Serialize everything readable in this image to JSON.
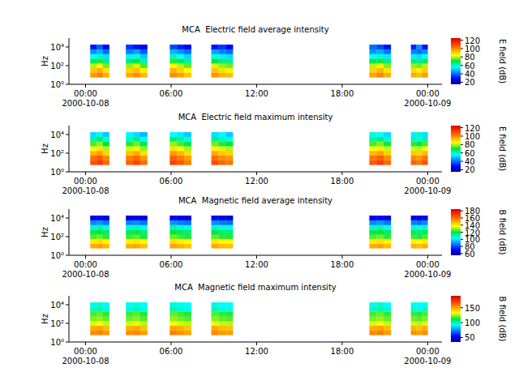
{
  "chart_data": [
    {
      "type": "heatmap",
      "title": "MCA  Electric field average intensity",
      "ylabel": "Hz",
      "log": "y",
      "x_start": [
        "2000-10-08 00:20",
        "2000-10-08 00:47",
        "2000-10-08 01:13",
        "2000-10-08 02:50",
        "2000-10-08 03:20",
        "2000-10-08 03:50",
        "2000-10-08 05:55",
        "2000-10-08 06:25",
        "2000-10-08 06:55",
        "2000-10-08 08:50",
        "2000-10-08 09:20",
        "2000-10-08 09:50",
        "2000-10-08 19:55",
        "2000-10-08 20:25",
        "2000-10-08 20:55",
        "2000-10-08 22:50",
        "2000-10-08 23:13",
        "2000-10-08 23:37"
      ],
      "x_end": [
        "2000-10-08 00:47",
        "2000-10-08 01:13",
        "2000-10-08 01:40",
        "2000-10-08 03:20",
        "2000-10-08 03:50",
        "2000-10-08 04:20",
        "2000-10-08 06:25",
        "2000-10-08 06:55",
        "2000-10-08 07:25",
        "2000-10-08 09:20",
        "2000-10-08 09:50",
        "2000-10-08 10:20",
        "2000-10-08 20:25",
        "2000-10-08 20:55",
        "2000-10-08 21:25",
        "2000-10-08 23:13",
        "2000-10-08 23:37",
        "2000-10-09 00:00"
      ],
      "y_edges": [
        5.6,
        17.8,
        56.2,
        178,
        562,
        1780,
        5620,
        17800
      ],
      "cells": [
        [
          98,
          102,
          95,
          96,
          100,
          94,
          100,
          97,
          92,
          99,
          95,
          93,
          97,
          101,
          95,
          96,
          93,
          98
        ],
        [
          92,
          95,
          88,
          90,
          93,
          86,
          94,
          90,
          85,
          92,
          88,
          86,
          90,
          94,
          88,
          89,
          86,
          91
        ],
        [
          80,
          84,
          76,
          78,
          82,
          74,
          84,
          80,
          75,
          82,
          78,
          76,
          80,
          83,
          77,
          78,
          76,
          80
        ],
        [
          68,
          72,
          64,
          66,
          70,
          62,
          72,
          68,
          63,
          70,
          66,
          64,
          68,
          71,
          65,
          66,
          64,
          68
        ],
        [
          56,
          60,
          52,
          54,
          58,
          50,
          60,
          56,
          51,
          58,
          54,
          52,
          56,
          59,
          53,
          54,
          52,
          56
        ],
        [
          44,
          48,
          40,
          42,
          46,
          38,
          48,
          44,
          40,
          46,
          42,
          40,
          44,
          47,
          41,
          42,
          40,
          44
        ],
        [
          30,
          38,
          28,
          34,
          30,
          26,
          36,
          32,
          28,
          30,
          34,
          28,
          40,
          36,
          30,
          32,
          44,
          30
        ]
      ],
      "xlim": [
        "2000-10-07 22:50",
        "2000-10-09 01:00"
      ],
      "xticks": [
        {
          "value": "2000-10-08 00:00",
          "label": "00:00\n2000-10-08"
        },
        {
          "value": "2000-10-08 06:00",
          "label": "06:00"
        },
        {
          "value": "2000-10-08 12:00",
          "label": "12:00"
        },
        {
          "value": "2000-10-08 18:00",
          "label": "18:00"
        },
        {
          "value": "2000-10-09 00:00",
          "label": "00:00\n2000-10-09"
        }
      ],
      "ylim": [
        1,
        90000
      ],
      "yticks": [
        {
          "value": 1,
          "label": "10⁰"
        },
        {
          "value": 100,
          "label": "10²"
        },
        {
          "value": 10000,
          "label": "10⁴"
        }
      ],
      "colorbar": {
        "label": "E field (dB)",
        "range": [
          15,
          125
        ],
        "ticks": [
          20,
          40,
          60,
          80,
          100,
          120
        ]
      }
    },
    {
      "type": "heatmap",
      "title": "MCA  Electric field maximum intensity",
      "ylabel": "Hz",
      "log": "y",
      "x_start": [
        "2000-10-08 00:20",
        "2000-10-08 00:47",
        "2000-10-08 01:13",
        "2000-10-08 02:50",
        "2000-10-08 03:20",
        "2000-10-08 03:50",
        "2000-10-08 05:55",
        "2000-10-08 06:25",
        "2000-10-08 06:55",
        "2000-10-08 08:50",
        "2000-10-08 09:20",
        "2000-10-08 09:50",
        "2000-10-08 19:55",
        "2000-10-08 20:25",
        "2000-10-08 20:55",
        "2000-10-08 22:50",
        "2000-10-08 23:13",
        "2000-10-08 23:37"
      ],
      "x_end": [
        "2000-10-08 00:47",
        "2000-10-08 01:13",
        "2000-10-08 01:40",
        "2000-10-08 03:20",
        "2000-10-08 03:50",
        "2000-10-08 04:20",
        "2000-10-08 06:25",
        "2000-10-08 06:55",
        "2000-10-08 07:25",
        "2000-10-08 09:20",
        "2000-10-08 09:50",
        "2000-10-08 10:20",
        "2000-10-08 20:25",
        "2000-10-08 20:55",
        "2000-10-08 21:25",
        "2000-10-08 23:13",
        "2000-10-08 23:37",
        "2000-10-09 00:00"
      ],
      "y_edges": [
        5.6,
        17.8,
        56.2,
        178,
        562,
        1780,
        5620,
        17800
      ],
      "cells": [
        [
          108,
          112,
          105,
          106,
          110,
          104,
          110,
          107,
          102,
          109,
          105,
          103,
          107,
          111,
          105,
          106,
          103,
          108
        ],
        [
          104,
          107,
          100,
          102,
          105,
          98,
          106,
          102,
          97,
          104,
          100,
          98,
          102,
          106,
          100,
          101,
          98,
          103
        ],
        [
          94,
          98,
          90,
          92,
          96,
          88,
          98,
          94,
          89,
          96,
          92,
          90,
          94,
          97,
          91,
          92,
          90,
          94
        ],
        [
          84,
          88,
          80,
          82,
          86,
          78,
          88,
          84,
          79,
          86,
          82,
          80,
          84,
          87,
          81,
          82,
          80,
          84
        ],
        [
          74,
          78,
          70,
          72,
          76,
          68,
          78,
          74,
          69,
          76,
          72,
          70,
          74,
          77,
          71,
          72,
          70,
          74
        ],
        [
          62,
          66,
          58,
          60,
          64,
          56,
          66,
          62,
          58,
          64,
          60,
          58,
          62,
          65,
          59,
          60,
          58,
          62
        ],
        [
          52,
          58,
          50,
          55,
          52,
          48,
          56,
          54,
          50,
          52,
          55,
          50,
          58,
          56,
          52,
          54,
          60,
          52
        ]
      ],
      "xlim": [
        "2000-10-07 22:50",
        "2000-10-09 01:00"
      ],
      "xticks": [
        {
          "value": "2000-10-08 00:00",
          "label": "00:00\n2000-10-08"
        },
        {
          "value": "2000-10-08 06:00",
          "label": "06:00"
        },
        {
          "value": "2000-10-08 12:00",
          "label": "12:00"
        },
        {
          "value": "2000-10-08 18:00",
          "label": "18:00"
        },
        {
          "value": "2000-10-09 00:00",
          "label": "00:00\n2000-10-09"
        }
      ],
      "ylim": [
        1,
        90000
      ],
      "yticks": [
        {
          "value": 1,
          "label": "10⁰"
        },
        {
          "value": 100,
          "label": "10²"
        },
        {
          "value": 10000,
          "label": "10⁴"
        }
      ],
      "colorbar": {
        "label": "E field (dB)",
        "range": [
          15,
          125
        ],
        "ticks": [
          20,
          40,
          60,
          80,
          100,
          120
        ]
      }
    },
    {
      "type": "heatmap",
      "title": "MCA  Magnetic field average intensity",
      "ylabel": "Hz",
      "log": "y",
      "x_start": [
        "2000-10-08 00:20",
        "2000-10-08 00:47",
        "2000-10-08 01:13",
        "2000-10-08 02:50",
        "2000-10-08 03:20",
        "2000-10-08 03:50",
        "2000-10-08 05:55",
        "2000-10-08 06:25",
        "2000-10-08 06:55",
        "2000-10-08 08:50",
        "2000-10-08 09:20",
        "2000-10-08 09:50",
        "2000-10-08 19:55",
        "2000-10-08 20:25",
        "2000-10-08 20:55",
        "2000-10-08 22:50",
        "2000-10-08 23:13",
        "2000-10-08 23:37"
      ],
      "x_end": [
        "2000-10-08 00:47",
        "2000-10-08 01:13",
        "2000-10-08 01:40",
        "2000-10-08 03:20",
        "2000-10-08 03:50",
        "2000-10-08 04:20",
        "2000-10-08 06:25",
        "2000-10-08 06:55",
        "2000-10-08 07:25",
        "2000-10-08 09:20",
        "2000-10-08 09:50",
        "2000-10-08 10:20",
        "2000-10-08 20:25",
        "2000-10-08 20:55",
        "2000-10-08 21:25",
        "2000-10-08 23:13",
        "2000-10-08 23:37",
        "2000-10-09 00:00"
      ],
      "y_edges": [
        5.6,
        17.8,
        56.2,
        178,
        562,
        1780,
        5620,
        17800
      ],
      "cells": [
        [
          150,
          152,
          148,
          150,
          151,
          147,
          152,
          149,
          146,
          151,
          148,
          147,
          150,
          152,
          148,
          149,
          147,
          150
        ],
        [
          140,
          142,
          138,
          139,
          141,
          137,
          142,
          139,
          137,
          141,
          138,
          137,
          140,
          142,
          138,
          139,
          137,
          140
        ],
        [
          125,
          127,
          123,
          124,
          126,
          122,
          127,
          124,
          122,
          126,
          123,
          122,
          125,
          127,
          123,
          124,
          122,
          125
        ],
        [
          118,
          120,
          116,
          117,
          119,
          115,
          120,
          117,
          115,
          119,
          116,
          115,
          118,
          120,
          116,
          117,
          115,
          118
        ],
        [
          108,
          110,
          106,
          107,
          109,
          105,
          110,
          107,
          105,
          109,
          106,
          105,
          108,
          110,
          106,
          107,
          105,
          108
        ],
        [
          88,
          90,
          86,
          87,
          89,
          85,
          90,
          87,
          85,
          89,
          86,
          85,
          88,
          90,
          86,
          87,
          85,
          88
        ],
        [
          68,
          70,
          66,
          67,
          69,
          65,
          70,
          67,
          65,
          69,
          66,
          65,
          68,
          70,
          66,
          67,
          65,
          68
        ]
      ],
      "xlim": [
        "2000-10-07 22:50",
        "2000-10-09 01:00"
      ],
      "xticks": [
        {
          "value": "2000-10-08 00:00",
          "label": "00:00\n2000-10-08"
        },
        {
          "value": "2000-10-08 06:00",
          "label": "06:00"
        },
        {
          "value": "2000-10-08 12:00",
          "label": "12:00"
        },
        {
          "value": "2000-10-08 18:00",
          "label": "18:00"
        },
        {
          "value": "2000-10-09 00:00",
          "label": "00:00\n2000-10-09"
        }
      ],
      "ylim": [
        1,
        90000
      ],
      "yticks": [
        {
          "value": 1,
          "label": "10⁰"
        },
        {
          "value": 100,
          "label": "10²"
        },
        {
          "value": 10000,
          "label": "10⁴"
        }
      ],
      "colorbar": {
        "label": "B field (dB)",
        "range": [
          55,
          185
        ],
        "ticks": [
          60,
          80,
          100,
          120,
          140,
          160,
          180
        ]
      }
    },
    {
      "type": "heatmap",
      "title": "MCA  Magnetic field maximum intensity",
      "ylabel": "Hz",
      "log": "y",
      "x_start": [
        "2000-10-08 00:20",
        "2000-10-08 00:47",
        "2000-10-08 01:13",
        "2000-10-08 02:50",
        "2000-10-08 03:20",
        "2000-10-08 03:50",
        "2000-10-08 05:55",
        "2000-10-08 06:25",
        "2000-10-08 06:55",
        "2000-10-08 08:50",
        "2000-10-08 09:20",
        "2000-10-08 09:50",
        "2000-10-08 19:55",
        "2000-10-08 20:25",
        "2000-10-08 20:55",
        "2000-10-08 22:50",
        "2000-10-08 23:13",
        "2000-10-08 23:37"
      ],
      "x_end": [
        "2000-10-08 00:47",
        "2000-10-08 01:13",
        "2000-10-08 01:40",
        "2000-10-08 03:20",
        "2000-10-08 03:50",
        "2000-10-08 04:20",
        "2000-10-08 06:25",
        "2000-10-08 06:55",
        "2000-10-08 07:25",
        "2000-10-08 09:20",
        "2000-10-08 09:50",
        "2000-10-08 10:20",
        "2000-10-08 20:25",
        "2000-10-08 20:55",
        "2000-10-08 21:25",
        "2000-10-08 23:13",
        "2000-10-08 23:37",
        "2000-10-09 00:00"
      ],
      "y_edges": [
        5.6,
        17.8,
        56.2,
        178,
        562,
        1780,
        5620,
        17800
      ],
      "cells": [
        [
          155,
          157,
          152,
          154,
          156,
          151,
          157,
          154,
          150,
          156,
          152,
          151,
          155,
          157,
          152,
          154,
          151,
          155
        ],
        [
          148,
          150,
          145,
          147,
          149,
          144,
          150,
          147,
          143,
          149,
          145,
          144,
          148,
          150,
          145,
          147,
          144,
          148
        ],
        [
          130,
          132,
          128,
          129,
          131,
          127,
          132,
          129,
          127,
          131,
          128,
          127,
          130,
          132,
          128,
          129,
          127,
          130
        ],
        [
          122,
          124,
          120,
          121,
          123,
          119,
          124,
          121,
          119,
          123,
          120,
          119,
          122,
          124,
          120,
          121,
          119,
          122
        ],
        [
          118,
          120,
          116,
          117,
          119,
          115,
          120,
          117,
          115,
          119,
          116,
          115,
          118,
          120,
          116,
          117,
          115,
          118
        ],
        [
          98,
          100,
          96,
          97,
          99,
          95,
          100,
          97,
          95,
          99,
          96,
          95,
          98,
          100,
          96,
          97,
          95,
          98
        ],
        [
          95,
          97,
          93,
          94,
          96,
          92,
          97,
          94,
          92,
          96,
          93,
          92,
          95,
          97,
          93,
          94,
          92,
          95
        ]
      ],
      "xlim": [
        "2000-10-07 22:50",
        "2000-10-09 01:00"
      ],
      "xticks": [
        {
          "value": "2000-10-08 00:00",
          "label": "00:00\n2000-10-08"
        },
        {
          "value": "2000-10-08 06:00",
          "label": "06:00"
        },
        {
          "value": "2000-10-08 12:00",
          "label": "12:00"
        },
        {
          "value": "2000-10-08 18:00",
          "label": "18:00"
        },
        {
          "value": "2000-10-09 00:00",
          "label": "00:00\n2000-10-09"
        }
      ],
      "ylim": [
        1,
        90000
      ],
      "yticks": [
        {
          "value": 1,
          "label": "10⁰"
        },
        {
          "value": 100,
          "label": "10²"
        },
        {
          "value": 10000,
          "label": "10⁴"
        }
      ],
      "colorbar": {
        "label": "B field (dB)",
        "range": [
          35,
          190
        ],
        "ticks": [
          50,
          100,
          150
        ]
      }
    }
  ]
}
